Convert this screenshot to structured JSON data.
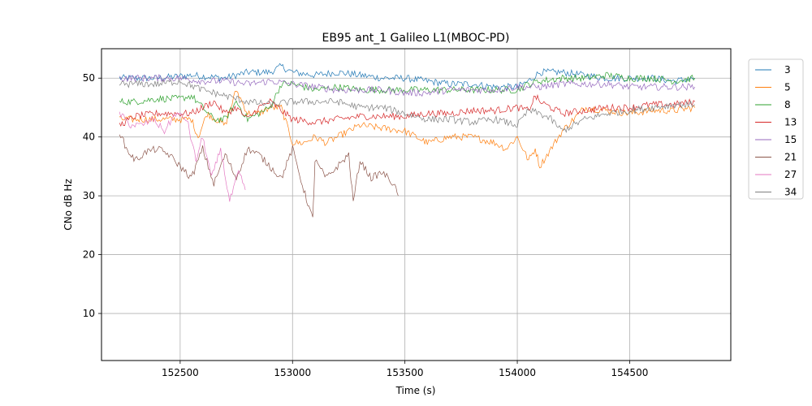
{
  "chart_data": {
    "type": "line",
    "title": "EB95 ant_1 Galileo L1(MBOC-PD)",
    "xlabel": "Time (s)",
    "ylabel": "CNo dB Hz",
    "xlim": [
      152150,
      154950
    ],
    "ylim": [
      2,
      55
    ],
    "xticks": [
      152500,
      153000,
      153500,
      154000,
      154500
    ],
    "yticks": [
      10,
      20,
      30,
      40,
      50
    ],
    "grid": true,
    "legend_position": "right-top",
    "series": [
      {
        "name": "3",
        "color": "#1f77b4",
        "x": [
          152230,
          152400,
          152550,
          152700,
          152800,
          152900,
          152950,
          153000,
          153100,
          153200,
          153300,
          153400,
          153500,
          153600,
          153700,
          153800,
          153900,
          154000,
          154050,
          154100,
          154200,
          154300,
          154400,
          154500,
          154600,
          154700,
          154790
        ],
        "y": [
          50,
          50,
          50.5,
          50,
          51,
          51,
          52,
          51,
          50.5,
          51,
          50.5,
          50,
          50,
          49.5,
          49,
          49,
          48.5,
          48.5,
          49.5,
          51,
          51,
          50.5,
          50,
          50,
          50,
          49.5,
          50
        ]
      },
      {
        "name": "5",
        "color": "#ff7f0e",
        "x": [
          152230,
          152300,
          152400,
          152480,
          152550,
          152580,
          152620,
          152660,
          152700,
          152750,
          152800,
          152850,
          152900,
          152950,
          153000,
          153050,
          153100,
          153150,
          153200,
          153300,
          153400,
          153500,
          153600,
          153700,
          153800,
          153900,
          153950,
          154000,
          154050,
          154080,
          154100,
          154150,
          154200,
          154250,
          154300,
          154400,
          154500,
          154600,
          154700,
          154790
        ],
        "y": [
          43,
          43,
          43,
          43,
          43,
          40,
          44,
          43,
          42,
          48,
          44,
          44,
          45,
          45,
          39,
          39,
          40,
          39,
          40,
          42,
          41.5,
          41,
          39,
          40,
          40,
          39,
          38,
          40,
          36,
          38,
          35,
          38,
          41,
          43,
          45,
          44.5,
          44,
          44.5,
          44.5,
          45
        ]
      },
      {
        "name": "8",
        "color": "#2ca02c",
        "x": [
          152230,
          152300,
          152400,
          152500,
          152550,
          152600,
          152650,
          152700,
          152750,
          152800,
          152850,
          152900,
          152950,
          153000,
          153100,
          153200,
          153300,
          153400,
          153500,
          153600,
          153700,
          153800,
          153900,
          154000,
          154050,
          154100,
          154200,
          154300,
          154400,
          154500,
          154600,
          154700,
          154790
        ],
        "y": [
          46,
          46,
          46.5,
          46.5,
          47,
          45,
          43,
          43,
          46,
          43,
          44,
          45,
          49,
          49,
          48,
          48.5,
          48,
          48,
          48,
          48,
          48,
          48,
          48,
          48,
          49,
          49.5,
          50,
          50,
          50.5,
          50,
          50,
          49.5,
          50
        ]
      },
      {
        "name": "13",
        "color": "#d62728",
        "x": [
          152230,
          152300,
          152400,
          152500,
          152550,
          152600,
          152650,
          152700,
          152750,
          152800,
          152850,
          152900,
          153000,
          153100,
          153200,
          153300,
          153400,
          153500,
          153600,
          153700,
          153800,
          153900,
          154000,
          154050,
          154080,
          154100,
          154150,
          154200,
          154300,
          154400,
          154500,
          154600,
          154700,
          154790
        ],
        "y": [
          42,
          43.5,
          44,
          44,
          44,
          45,
          46,
          44,
          45,
          43,
          45,
          46,
          43,
          42.5,
          43,
          43.5,
          43.5,
          43.5,
          44,
          44,
          44.5,
          44.5,
          45,
          44.5,
          47,
          46,
          45,
          44,
          44.5,
          45,
          45,
          45.5,
          45.5,
          46
        ]
      },
      {
        "name": "15",
        "color": "#9467bd",
        "x": [
          152230,
          152300,
          152400,
          152500,
          152600,
          152700,
          152800,
          152900,
          153000,
          153100,
          153200,
          153300,
          153400,
          153500,
          153600,
          153700,
          153800,
          153900,
          154000,
          154100,
          154200,
          154300,
          154400,
          154500,
          154600,
          154700,
          154790
        ],
        "y": [
          50,
          50,
          50,
          50,
          49.5,
          49.5,
          49,
          49.5,
          49,
          48.5,
          48,
          48,
          48,
          47.5,
          47.5,
          48,
          48,
          48,
          48.5,
          48.5,
          49,
          49,
          49,
          48.5,
          48.5,
          48.5,
          48.5
        ]
      },
      {
        "name": "21",
        "color": "#8c564b",
        "x": [
          152230,
          152260,
          152300,
          152350,
          152400,
          152450,
          152500,
          152550,
          152600,
          152650,
          152700,
          152750,
          152800,
          152850,
          152900,
          152950,
          153000,
          153050,
          153090,
          153100,
          153150,
          153200,
          153250,
          153270,
          153300,
          153350,
          153400,
          153450,
          153470
        ],
        "y": [
          41,
          38,
          36,
          37.5,
          38,
          37,
          35,
          33,
          38,
          32,
          37,
          33,
          38,
          37,
          35,
          33,
          38,
          31,
          26,
          36,
          33,
          35,
          37,
          29,
          36,
          33,
          34,
          32,
          30
        ]
      },
      {
        "name": "27",
        "color": "#e377c2",
        "x": [
          152230,
          152280,
          152330,
          152380,
          152430,
          152480,
          152530,
          152570,
          152600,
          152640,
          152680,
          152720,
          152760,
          152790
        ],
        "y": [
          44,
          42,
          42,
          43,
          41,
          44,
          43,
          36,
          40,
          33,
          38,
          29,
          34,
          31
        ]
      },
      {
        "name": "34",
        "color": "#7f7f7f",
        "x": [
          152230,
          152300,
          152400,
          152500,
          152600,
          152700,
          152800,
          152900,
          153000,
          153100,
          153200,
          153300,
          153400,
          153500,
          153600,
          153700,
          153800,
          153900,
          154000,
          154050,
          154100,
          154150,
          154200,
          154300,
          154400,
          154500,
          154600,
          154700,
          154790
        ],
        "y": [
          49,
          49,
          49,
          49.5,
          48,
          47,
          46,
          45.5,
          46,
          46,
          46,
          45,
          45,
          44,
          43,
          43,
          42.5,
          43,
          42,
          44.5,
          44,
          43,
          41,
          43,
          44,
          44.5,
          45,
          45.5,
          45.5
        ]
      }
    ]
  }
}
